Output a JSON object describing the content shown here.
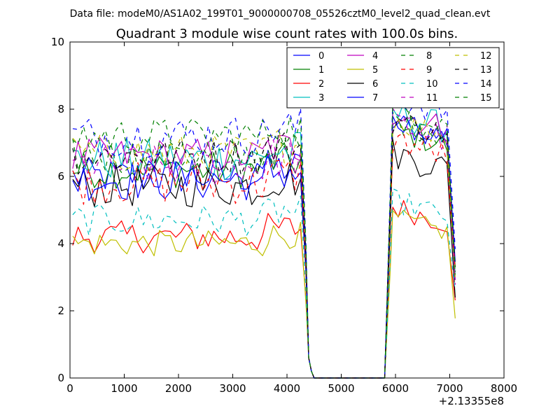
{
  "chart_data": {
    "type": "line",
    "suptitle": "Data file: modeM0/AS1A02_199T01_9000000708_05526cztM0_level2_quad_clean.evt",
    "title": "Quadrant 3 module wise count rates with 100.0s bins.",
    "xlabel": "",
    "ylabel": "",
    "x_offset_label": "+2.13355e8",
    "xlim": [
      0,
      8000
    ],
    "ylim": [
      0,
      10
    ],
    "xticks": [
      0,
      1000,
      2000,
      3000,
      4000,
      5000,
      6000,
      7000,
      8000
    ],
    "yticks": [
      0,
      2,
      4,
      6,
      8,
      10
    ],
    "grid": false,
    "legend_position": "top-right",
    "series": [
      {
        "name": "0",
        "color": "#0000ff",
        "dash": "solid",
        "base": 6.0,
        "amp": 0.35,
        "post": 7.6
      },
      {
        "name": "1",
        "color": "#008000",
        "dash": "solid",
        "base": 6.2,
        "amp": 0.35,
        "post": 7.4
      },
      {
        "name": "2",
        "color": "#ff0000",
        "dash": "solid",
        "base": 4.2,
        "amp": 0.3,
        "post": 5.1
      },
      {
        "name": "3",
        "color": "#00bfbf",
        "dash": "solid",
        "base": 6.5,
        "amp": 0.4,
        "post": 7.9
      },
      {
        "name": "4",
        "color": "#bf00bf",
        "dash": "solid",
        "base": 6.6,
        "amp": 0.35,
        "post": 7.9
      },
      {
        "name": "5",
        "color": "#bfbf00",
        "dash": "solid",
        "base": 4.0,
        "amp": 0.25,
        "post": 4.8
      },
      {
        "name": "6",
        "color": "#000000",
        "dash": "solid",
        "base": 5.7,
        "amp": 0.4,
        "post": 6.7
      },
      {
        "name": "7",
        "color": "#0000ff",
        "dash": "solid",
        "base": 5.9,
        "amp": 0.4,
        "post": 7.5
      },
      {
        "name": "8",
        "color": "#008000",
        "dash": "dashed",
        "base": 6.6,
        "amp": 0.35,
        "post": 7.7
      },
      {
        "name": "9",
        "color": "#ff0000",
        "dash": "dashed",
        "base": 5.8,
        "amp": 0.4,
        "post": 7.1
      },
      {
        "name": "10",
        "color": "#00bfbf",
        "dash": "dashed",
        "base": 4.7,
        "amp": 0.3,
        "post": 5.3
      },
      {
        "name": "11",
        "color": "#bf00bf",
        "dash": "dashed",
        "base": 6.3,
        "amp": 0.4,
        "post": 7.6
      },
      {
        "name": "12",
        "color": "#bfbf00",
        "dash": "dashed",
        "base": 6.7,
        "amp": 0.35,
        "post": 7.7
      },
      {
        "name": "13",
        "color": "#000000",
        "dash": "dashed",
        "base": 6.6,
        "amp": 0.35,
        "post": 7.7
      },
      {
        "name": "14",
        "color": "#0000ff",
        "dash": "dashed",
        "base": 7.2,
        "amp": 0.4,
        "post": 8.4
      },
      {
        "name": "15",
        "color": "#008000",
        "dash": "dashed",
        "base": 7.2,
        "amp": 0.35,
        "post": 8.1
      }
    ],
    "time_profile": {
      "bin_width": 100,
      "active1": [
        50,
        4250
      ],
      "drop_to_zero": [
        4250,
        4500
      ],
      "zero": [
        4500,
        5800
      ],
      "rise": [
        5800,
        5950
      ],
      "active2": [
        5950,
        7000
      ],
      "end": 7100
    }
  }
}
